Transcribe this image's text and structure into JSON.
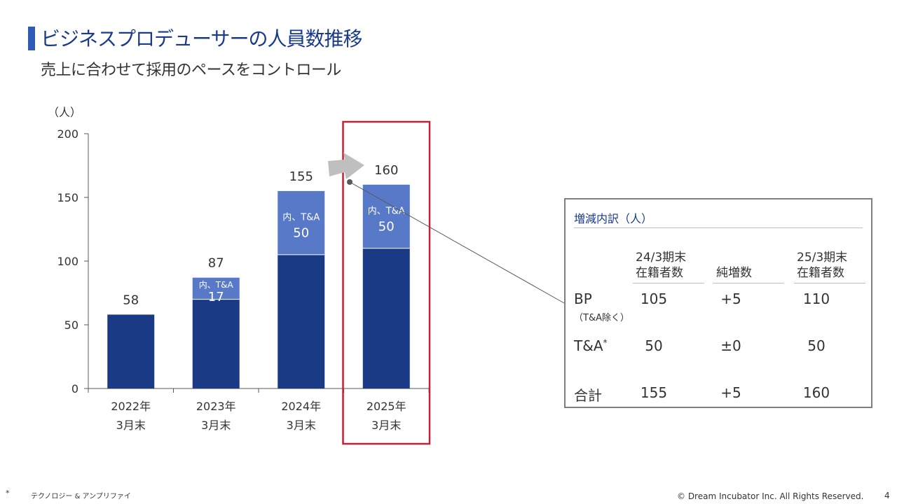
{
  "title": "ビジネスプロデューサーの人員数推移",
  "subtitle": "売上に合わせて採用のペースをコントロール",
  "colors": {
    "bp": "#1b3a86",
    "ta": "#5779c7",
    "highlight": "#c4203a",
    "arrow": "#bfbfbf",
    "accent_bar": "#2e5bb5"
  },
  "chart_data": {
    "type": "bar",
    "stacked": true,
    "unit_label": "（人）",
    "ylim": [
      0,
      200
    ],
    "yticks": [
      0,
      50,
      100,
      150,
      200
    ],
    "categories": [
      [
        "2022年",
        "3月末"
      ],
      [
        "2023年",
        "3月末"
      ],
      [
        "2024年",
        "3月末"
      ],
      [
        "2025年",
        "3月末"
      ]
    ],
    "series": [
      {
        "key": "bp",
        "values": [
          58,
          70,
          105,
          110
        ]
      },
      {
        "key": "ta",
        "values": [
          0,
          17,
          50,
          50
        ]
      }
    ],
    "totals": [
      58,
      87,
      155,
      160
    ],
    "segment_labels": [
      "",
      "内、T&A",
      "内、T&A",
      "内、T&A"
    ],
    "highlight_index": 3
  },
  "breakdown": {
    "title": "増減内訳（人）",
    "headers": [
      "24/3期末\n在籍者数",
      "純増数",
      "25/3期末\n在籍者数"
    ],
    "rows": [
      {
        "label": "BP",
        "sublabel": "（T&A除く）",
        "values": [
          "105",
          "+5",
          "110"
        ]
      },
      {
        "label": "T&A*",
        "sublabel": "",
        "values": [
          "50",
          "±0",
          "50"
        ]
      },
      {
        "label": "合計",
        "sublabel": "",
        "values": [
          "155",
          "+5",
          "160"
        ]
      }
    ]
  },
  "footer": {
    "marker": "*",
    "note": "テクノロジー & アンプリファイ",
    "copyright": "© Dream Incubator Inc. All Rights Reserved.",
    "page": "4"
  }
}
